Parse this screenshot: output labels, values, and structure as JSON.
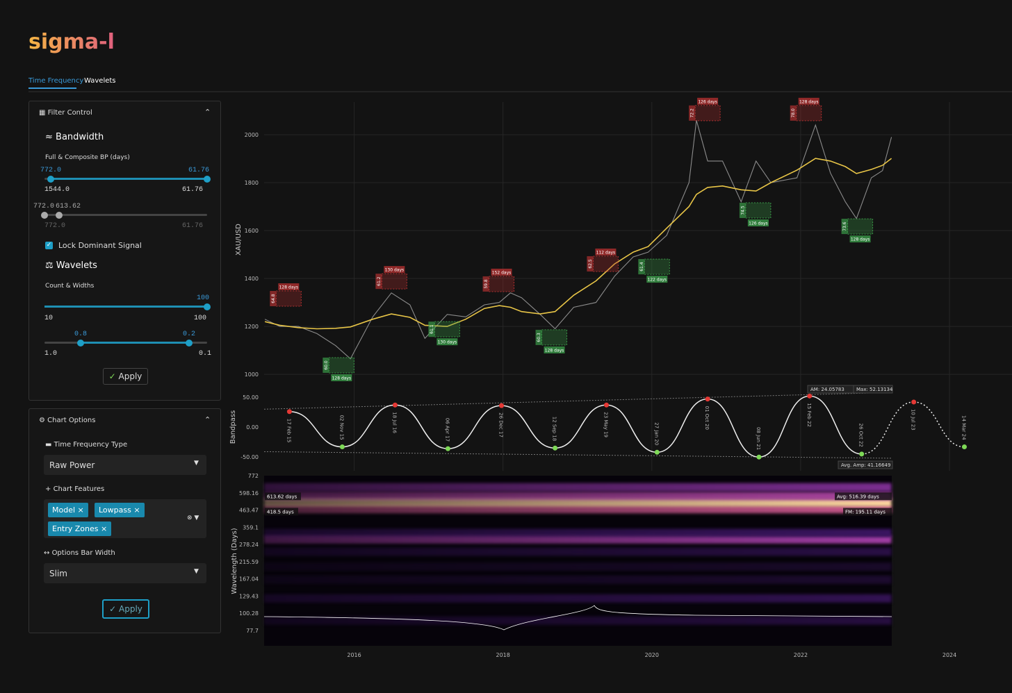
{
  "header": {
    "logo": "sigma-l"
  },
  "tabs": [
    "Time Frequency",
    "Wavelets"
  ],
  "filter_control": {
    "title": "Filter Control",
    "bandwidth": {
      "title": "Bandwidth",
      "label": "Full & Composite BP (days)",
      "slider_a": {
        "low": "772.0",
        "high": "61.76",
        "min": "1544.0",
        "max": "61.76"
      },
      "slider_b": {
        "low": "772.0",
        "high": "613.62",
        "min": "772.0",
        "max": "61.76"
      },
      "lock": "Lock Dominant Signal"
    },
    "wavelets": {
      "title": "Wavelets",
      "label": "Count & Widths",
      "slider_a": {
        "high": "100",
        "min": "10",
        "max": "100"
      },
      "slider_b": {
        "low": "0.8",
        "high": "0.2",
        "min": "1.0",
        "max": "0.1"
      }
    },
    "apply": "Apply"
  },
  "chart_options": {
    "title": "Chart Options",
    "tf_type": {
      "label": "Time Frequency Type",
      "value": "Raw Power"
    },
    "features": {
      "label": "Chart Features",
      "tags": [
        "Model",
        "Lowpass",
        "Entry Zones"
      ]
    },
    "bar_width": {
      "label": "Options Bar Width",
      "value": "Slim"
    },
    "apply": "Apply"
  },
  "chart_data": [
    {
      "type": "line",
      "y_label": "XAU/USD",
      "xlim": [
        2014.79,
        2024.84
      ],
      "ylim": [
        954,
        2136
      ],
      "yticks": [
        1000,
        1200,
        1400,
        1600,
        1800,
        2000
      ],
      "grid": true,
      "x": [
        2014.8,
        2015.0,
        2015.25,
        2015.5,
        2015.75,
        2015.95,
        2016.25,
        2016.5,
        2016.75,
        2016.95,
        2017.25,
        2017.5,
        2017.75,
        2017.95,
        2018.1,
        2018.25,
        2018.5,
        2018.7,
        2018.95,
        2019.25,
        2019.5,
        2019.75,
        2019.95,
        2020.2,
        2020.5,
        2020.6,
        2020.75,
        2020.95,
        2021.2,
        2021.4,
        2021.6,
        2021.95,
        2022.2,
        2022.4,
        2022.6,
        2022.75,
        2022.95,
        2023.1,
        2023.22
      ],
      "series": [
        {
          "color": "#8c8c8c",
          "values": [
            1230,
            1200,
            1200,
            1170,
            1120,
            1065,
            1240,
            1340,
            1290,
            1150,
            1250,
            1240,
            1290,
            1300,
            1340,
            1320,
            1250,
            1190,
            1280,
            1300,
            1410,
            1490,
            1510,
            1580,
            1800,
            2060,
            1890,
            1890,
            1720,
            1890,
            1800,
            1820,
            2040,
            1840,
            1720,
            1650,
            1820,
            1850,
            1990
          ]
        },
        {
          "color": "#e8c547",
          "values": [
            1220,
            1205,
            1195,
            1190,
            1192,
            1198,
            1230,
            1252,
            1238,
            1205,
            1200,
            1230,
            1275,
            1287,
            1280,
            1262,
            1252,
            1262,
            1330,
            1390,
            1461,
            1510,
            1533,
            1610,
            1700,
            1751,
            1780,
            1786,
            1770,
            1765,
            1800,
            1852,
            1901,
            1890,
            1867,
            1838,
            1855,
            1872,
            1901
          ]
        }
      ],
      "zones": [
        {
          "x": 2015.12,
          "value": 1348,
          "label": "128 days",
          "sub": "64.8",
          "color": "#b03030"
        },
        {
          "x": 2016.54,
          "value": 1420,
          "label": "130 days",
          "sub": "61.2",
          "color": "#b03030"
        },
        {
          "x": 2017.98,
          "value": 1409,
          "label": "152 days",
          "sub": "59.8",
          "color": "#b03030"
        },
        {
          "x": 2019.38,
          "value": 1493,
          "label": "112 days",
          "sub": "62.5",
          "color": "#b03030"
        },
        {
          "x": 2020.75,
          "value": 2122,
          "label": "126 days",
          "sub": "72.2",
          "color": "#b03030"
        },
        {
          "x": 2022.11,
          "value": 2122,
          "label": "128 days",
          "sub": "78.0",
          "color": "#b03030"
        },
        {
          "x": 2015.83,
          "value": 1070,
          "label": "128 days",
          "sub": "60.0",
          "color": "#3a9a48"
        },
        {
          "x": 2017.25,
          "value": 1220,
          "label": "130 days",
          "sub": "61.1",
          "color": "#3a9a48"
        },
        {
          "x": 2018.69,
          "value": 1186,
          "label": "128 days",
          "sub": "60.3",
          "color": "#3a9a48"
        },
        {
          "x": 2020.07,
          "value": 1481,
          "label": "122 days",
          "sub": "61.4",
          "color": "#3a9a48"
        },
        {
          "x": 2021.43,
          "value": 1716,
          "label": "126 days",
          "sub": "74.5",
          "color": "#3a9a48"
        },
        {
          "x": 2022.8,
          "value": 1649,
          "label": "128 days",
          "sub": "73.6",
          "color": "#3a9a48"
        }
      ]
    },
    {
      "type": "bandpass",
      "y_label": "Bandpass",
      "xlim": [
        2014.79,
        2024.84
      ],
      "ylim": [
        -73,
        64
      ],
      "yticks": [
        {
          "value": 50,
          "label": "50.00"
        },
        {
          "value": 0,
          "label": "0.00"
        },
        {
          "value": -50,
          "label": "-50.00"
        }
      ],
      "x": [
        2015.13,
        2015.84,
        2016.55,
        2017.26,
        2017.98,
        2018.7,
        2019.39,
        2020.07,
        2020.75,
        2021.44,
        2022.12,
        2022.82
      ],
      "values": [
        26,
        -33,
        37,
        -36,
        36,
        -35,
        37,
        -42,
        47,
        -50,
        52,
        -45
      ],
      "labels": [
        "17 Feb 15",
        "02 Nov 15",
        "18 Jul 16",
        "06 Apr 17",
        "26 Dec 17",
        "12 Sep 18",
        "23 May 19",
        "27 Jan 20",
        "01 Oct 20",
        "08 Jun 21",
        "15 Feb 22",
        "26 Oct 22"
      ],
      "projection": {
        "x": [
          2023.52,
          2024.2
        ],
        "values": [
          42,
          -33
        ],
        "labels": [
          "10 Jul 23",
          "14 Mar 24"
        ]
      },
      "envelope": {
        "x": [
          2014.79,
          2023.22
        ],
        "upper": [
          30,
          58
        ],
        "lower": [
          -41,
          -52
        ]
      },
      "annotations": [
        "AM: 24.05783",
        "Max: 52.13134",
        "Avg. Amp: 41.16649"
      ]
    },
    {
      "type": "heatmap",
      "y_label": "Wavelength (Days)",
      "log_scale": true,
      "xlim": [
        2014.79,
        2024.84
      ],
      "x": [
        2014.79,
        2023.22
      ],
      "xticks": [
        2016,
        2018,
        2020,
        2022,
        2024
      ],
      "ylim": [
        61.9,
        772
      ],
      "yticks": [
        77.7,
        100.28,
        129.43,
        167.04,
        215.59,
        278.24,
        359.1,
        463.47,
        598.16,
        772
      ],
      "wavelengths": [
        90,
        125,
        165,
        200,
        250,
        300,
        330,
        470,
        520,
        570,
        650
      ],
      "power": [
        0.18,
        0.25,
        0.12,
        0.1,
        0.2,
        0.62,
        0.3,
        0.75,
        1.0,
        0.65,
        0.5
      ],
      "selection": {
        "values": [
          418.5,
          613.62
        ],
        "value_labels": [
          "418.5 days",
          "613.62 days"
        ]
      },
      "annotations": [
        "FM: 195.11 days",
        "Avg: 516.39 days"
      ]
    }
  ]
}
